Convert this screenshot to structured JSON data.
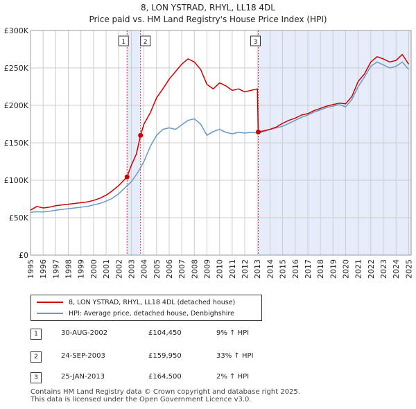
{
  "header": {
    "title_line1": "8, LON YSTRAD, RHYL, LL18 4DL",
    "title_line2": "Price paid vs. HM Land Registry's House Price Index (HPI)"
  },
  "colors": {
    "price_line": "#cc0000",
    "hpi_line": "#6699cc",
    "shade": "#dde6f7",
    "grid": "#cccccc",
    "marker_line": "#cc0000"
  },
  "chart_data": {
    "type": "line",
    "x_unit": "year",
    "xlim": [
      1995,
      2025.2
    ],
    "ylim": [
      0,
      300000
    ],
    "y_ticks": [
      0,
      50000,
      100000,
      150000,
      200000,
      250000,
      300000
    ],
    "y_tick_labels": [
      "£0",
      "£50K",
      "£100K",
      "£150K",
      "£200K",
      "£250K",
      "£300K"
    ],
    "x_ticks": [
      1995,
      1996,
      1997,
      1998,
      1999,
      2000,
      2001,
      2002,
      2003,
      2004,
      2005,
      2006,
      2007,
      2008,
      2009,
      2010,
      2011,
      2012,
      2013,
      2014,
      2015,
      2016,
      2017,
      2018,
      2019,
      2020,
      2021,
      2022,
      2023,
      2024,
      2025
    ],
    "x_tick_labels": [
      "1995",
      "1996",
      "1997",
      "1998",
      "1999",
      "2000",
      "2001",
      "2002",
      "2003",
      "2004",
      "2005",
      "2006",
      "2007",
      "2008",
      "2009",
      "2010",
      "2011",
      "2012",
      "2013",
      "2014",
      "2015",
      "2016",
      "2017",
      "2018",
      "2019",
      "2020",
      "2021",
      "2022",
      "2023",
      "2024",
      "2025"
    ],
    "grid": true,
    "shaded_regions": [
      {
        "from": 2002.66,
        "to": 2003.73
      },
      {
        "from": 2013.07,
        "to": 2025.2
      }
    ],
    "series": [
      {
        "name": "8, LON YSTRAD, RHYL, LL18 4DL (detached house)",
        "color": "#cc0000",
        "x": [
          1995.0,
          1995.5,
          1996.0,
          1996.5,
          1997.0,
          1997.5,
          1998.0,
          1998.5,
          1999.0,
          1999.5,
          2000.0,
          2000.5,
          2001.0,
          2001.5,
          2002.0,
          2002.66,
          2003.0,
          2003.4,
          2003.73,
          2004.0,
          2004.5,
          2005.0,
          2005.5,
          2006.0,
          2006.5,
          2007.0,
          2007.5,
          2008.0,
          2008.5,
          2009.0,
          2009.5,
          2010.0,
          2010.5,
          2011.0,
          2011.5,
          2012.0,
          2012.5,
          2013.0,
          2013.07,
          2013.5,
          2014.0,
          2014.5,
          2015.0,
          2015.5,
          2016.0,
          2016.5,
          2017.0,
          2017.5,
          2018.0,
          2018.5,
          2019.0,
          2019.5,
          2020.0,
          2020.5,
          2021.0,
          2021.5,
          2022.0,
          2022.5,
          2023.0,
          2023.5,
          2024.0,
          2024.5,
          2025.0
        ],
        "values": [
          60000,
          65000,
          63000,
          64000,
          66000,
          67000,
          68000,
          69000,
          70000,
          71000,
          73000,
          76000,
          80000,
          86000,
          93000,
          104450,
          120000,
          135000,
          159950,
          175000,
          190000,
          210000,
          222000,
          235000,
          245000,
          255000,
          262000,
          258000,
          248000,
          228000,
          222000,
          230000,
          226000,
          220000,
          222000,
          218000,
          220000,
          222000,
          164500,
          166000,
          168000,
          171000,
          176000,
          180000,
          183000,
          187000,
          189000,
          193000,
          196000,
          199000,
          201000,
          203000,
          202000,
          212000,
          232000,
          242000,
          258000,
          265000,
          262000,
          258000,
          260000,
          268000,
          255000
        ]
      },
      {
        "name": "HPI: Average price, detached house, Denbighshire",
        "color": "#6699cc",
        "x": [
          1995.0,
          1995.5,
          1996.0,
          1996.5,
          1997.0,
          1997.5,
          1998.0,
          1998.5,
          1999.0,
          1999.5,
          2000.0,
          2000.5,
          2001.0,
          2001.5,
          2002.0,
          2002.5,
          2003.0,
          2003.5,
          2004.0,
          2004.5,
          2005.0,
          2005.5,
          2006.0,
          2006.5,
          2007.0,
          2007.5,
          2008.0,
          2008.5,
          2009.0,
          2009.5,
          2010.0,
          2010.5,
          2011.0,
          2011.5,
          2012.0,
          2012.5,
          2013.0,
          2013.5,
          2014.0,
          2014.5,
          2015.0,
          2015.5,
          2016.0,
          2016.5,
          2017.0,
          2017.5,
          2018.0,
          2018.5,
          2019.0,
          2019.5,
          2020.0,
          2020.5,
          2021.0,
          2021.5,
          2022.0,
          2022.5,
          2023.0,
          2023.5,
          2024.0,
          2024.5,
          2025.0
        ],
        "values": [
          57000,
          58000,
          57500,
          58500,
          60000,
          61000,
          62000,
          63000,
          64000,
          65000,
          67000,
          69000,
          72000,
          76000,
          82000,
          90000,
          98000,
          110000,
          125000,
          145000,
          160000,
          168000,
          170000,
          168000,
          174000,
          180000,
          182000,
          175000,
          160000,
          165000,
          168000,
          164000,
          162000,
          164000,
          163000,
          164000,
          163000,
          165000,
          168000,
          170000,
          172000,
          176000,
          180000,
          184000,
          187000,
          191000,
          194000,
          197000,
          199000,
          201000,
          198000,
          208000,
          225000,
          238000,
          252000,
          258000,
          254000,
          250000,
          252000,
          258000,
          248000
        ]
      }
    ],
    "sales": [
      {
        "num": "1",
        "x": 2002.66,
        "value": 104450
      },
      {
        "num": "2",
        "x": 2003.73,
        "value": 159950
      },
      {
        "num": "3",
        "x": 2013.07,
        "value": 164500
      }
    ]
  },
  "legend": {
    "price_label": "8, LON YSTRAD, RHYL, LL18 4DL (detached house)",
    "hpi_label": "HPI: Average price, detached house, Denbighshire"
  },
  "transactions": [
    {
      "num": "1",
      "date": "30-AUG-2002",
      "price": "£104,450",
      "hpi": "9% ↑ HPI"
    },
    {
      "num": "2",
      "date": "24-SEP-2003",
      "price": "£159,950",
      "hpi": "33% ↑ HPI"
    },
    {
      "num": "3",
      "date": "25-JAN-2013",
      "price": "£164,500",
      "hpi": "2% ↑ HPI"
    }
  ],
  "footer": {
    "line1": "Contains HM Land Registry data © Crown copyright and database right 2025.",
    "line2": "This data is licensed under the Open Government Licence v3.0."
  }
}
